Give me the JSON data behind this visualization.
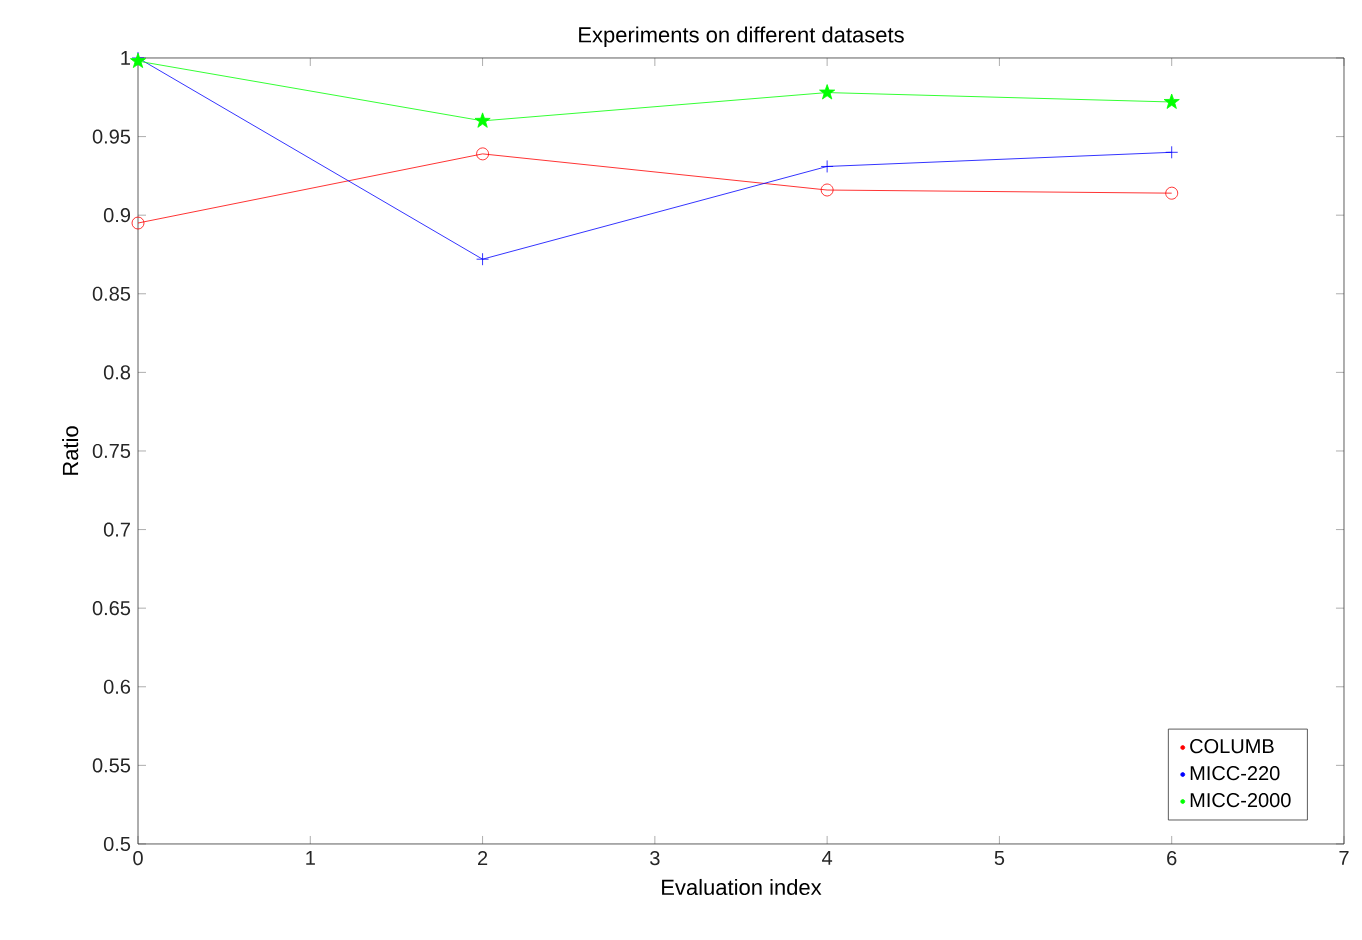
{
  "chart_data": {
    "type": "line",
    "title": "Experiments on different datasets",
    "xlabel": "Evaluation index",
    "ylabel": "Ratio",
    "x": [
      0,
      2,
      4,
      6
    ],
    "series": [
      {
        "name": "COLUMB",
        "color": "#ff0000",
        "marker": "circle",
        "values": [
          0.895,
          0.939,
          0.916,
          0.914
        ]
      },
      {
        "name": "MICC-220",
        "color": "#0000ff",
        "marker": "cross",
        "values": [
          1.0,
          0.872,
          0.931,
          0.94
        ]
      },
      {
        "name": "MICC-2000",
        "color": "#00ff00",
        "marker": "star",
        "values": [
          0.998,
          0.96,
          0.978,
          0.972
        ]
      }
    ],
    "xlim": [
      0,
      7
    ],
    "xticks": [
      0,
      1,
      2,
      3,
      4,
      5,
      6,
      7
    ],
    "ylim": [
      0.5,
      1
    ],
    "yticks": [
      0.5,
      0.55,
      0.6,
      0.65,
      0.7,
      0.75,
      0.8,
      0.85,
      0.9,
      0.95,
      1
    ],
    "legend": "bottom right",
    "grid": false
  }
}
